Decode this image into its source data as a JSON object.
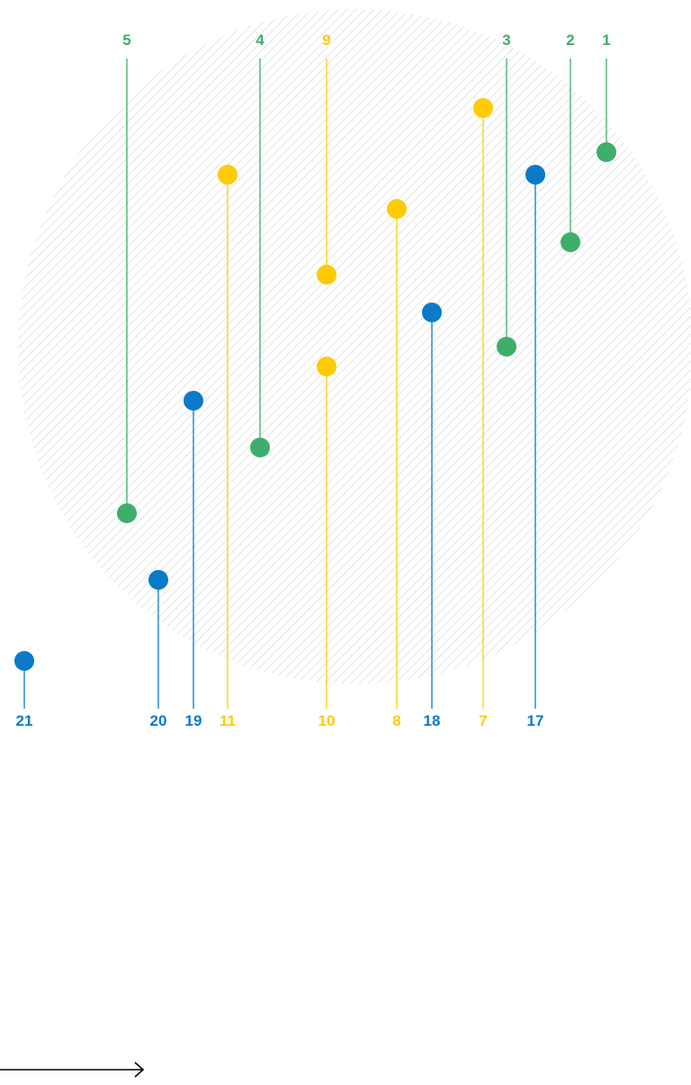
{
  "colors": {
    "green": "#3fae6b",
    "yellow": "#ffcb05",
    "blue": "#0a7ac9",
    "hatch": "#cfcfcf",
    "arrow": "#000000"
  },
  "pins": [
    {
      "label": "1",
      "color": "green",
      "anchor": "top"
    },
    {
      "label": "2",
      "color": "green",
      "anchor": "top"
    },
    {
      "label": "3",
      "color": "green",
      "anchor": "top"
    },
    {
      "label": "4",
      "color": "green",
      "anchor": "top"
    },
    {
      "label": "5",
      "color": "green",
      "anchor": "top"
    },
    {
      "label": "9",
      "color": "yellow",
      "anchor": "top"
    },
    {
      "label": "7",
      "color": "yellow",
      "anchor": "bottom"
    },
    {
      "label": "8",
      "color": "yellow",
      "anchor": "bottom"
    },
    {
      "label": "10",
      "color": "yellow",
      "anchor": "bottom"
    },
    {
      "label": "11",
      "color": "yellow",
      "anchor": "bottom"
    },
    {
      "label": "17",
      "color": "blue",
      "anchor": "bottom"
    },
    {
      "label": "18",
      "color": "blue",
      "anchor": "bottom"
    },
    {
      "label": "19",
      "color": "blue",
      "anchor": "bottom"
    },
    {
      "label": "20",
      "color": "blue",
      "anchor": "bottom"
    },
    {
      "label": "21",
      "color": "blue",
      "anchor": "bottom"
    }
  ],
  "arrow_icon": "right-arrow-icon"
}
